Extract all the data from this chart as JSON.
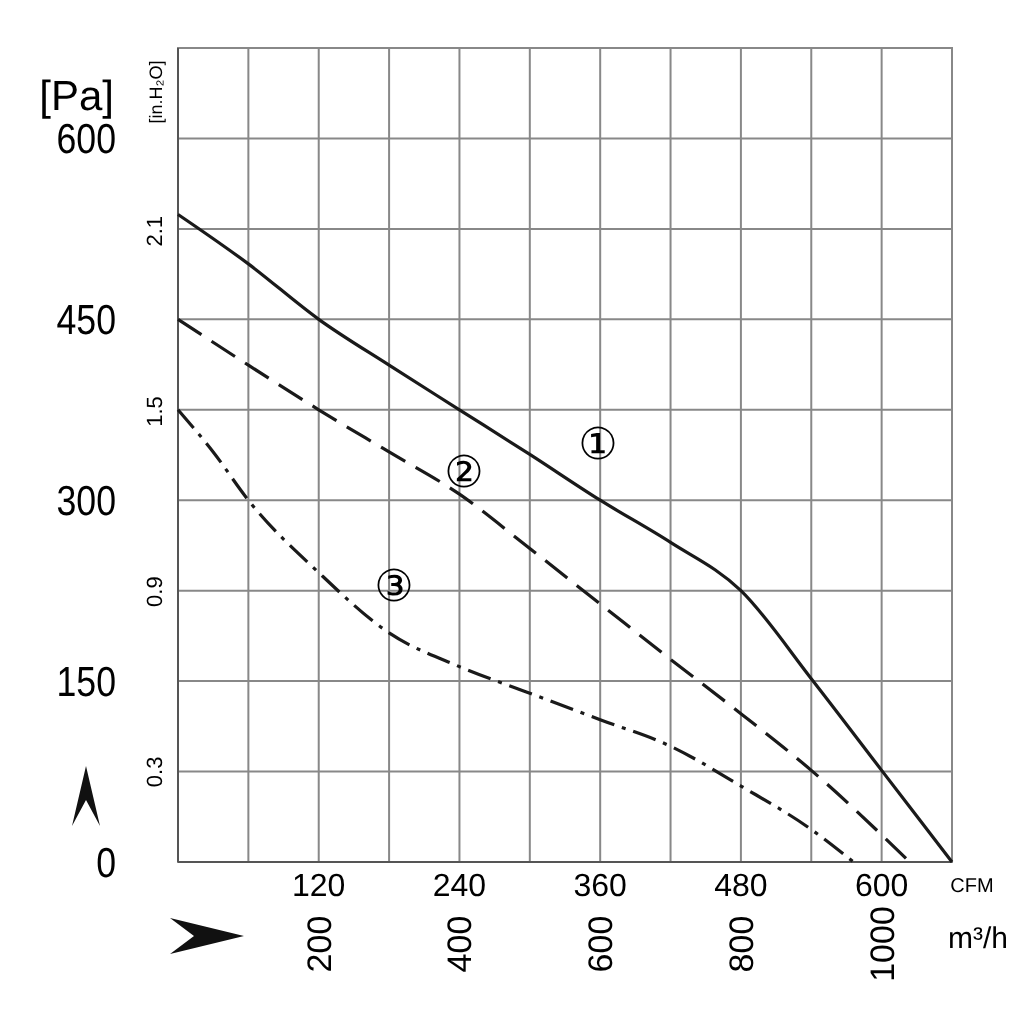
{
  "chart_data": {
    "type": "line",
    "ylabel": "[Pa]",
    "y2label": "[in.H₂O]",
    "xlabel": "m³/h",
    "x2label": "CFM",
    "xlim": [
      0,
      1100
    ],
    "xticks": [
      {
        "value": 0,
        "label": null
      },
      {
        "value": 100,
        "label": null
      },
      200,
      {
        "value": 300,
        "label": null
      },
      400,
      {
        "value": 500,
        "label": null
      },
      600,
      {
        "value": 700,
        "label": null
      },
      800,
      {
        "value": 900,
        "label": null
      },
      1000,
      {
        "value": 1100,
        "label": null
      }
    ],
    "x2lim": [
      0,
      660
    ],
    "x2ticks": [
      120,
      240,
      360,
      480,
      600
    ],
    "ylim": [
      0,
      675
    ],
    "yticks": [
      0,
      {
        "value": 75,
        "label": null
      },
      150,
      {
        "value": 225,
        "label": null
      },
      300,
      {
        "value": 375,
        "label": null
      },
      450,
      {
        "value": 525,
        "label": null
      },
      600,
      {
        "value": 675,
        "label": null
      }
    ],
    "y2lim": [
      0,
      2.71
    ],
    "y2ticks": [
      0.3,
      0.9,
      1.5,
      2.1
    ],
    "grid": true,
    "marker": "none",
    "series": [
      {
        "color": "#1a1a1a",
        "line_style": "solid",
        "x": [
          0,
          100,
          200,
          300,
          400,
          500,
          600,
          700,
          800,
          900,
          1000,
          1100
        ],
        "values": [
          537,
          496,
          450,
          412,
          375,
          338,
          300,
          265,
          225,
          152,
          76,
          0
        ]
      },
      {
        "color": "#1a1a1a",
        "line_style": "dashed",
        "x": [
          0,
          100,
          200,
          300,
          400,
          500,
          600,
          700,
          800,
          900,
          1040
        ],
        "values": [
          450,
          412,
          375,
          340,
          305,
          260,
          214,
          168,
          123,
          76,
          0
        ]
      },
      {
        "color": "#1a1a1a",
        "line_style": "dotted",
        "x": [
          0,
          50,
          100,
          200,
          300,
          400,
          500,
          600,
          700,
          800,
          900,
          960
        ],
        "values": [
          375,
          340,
          300,
          240,
          190,
          162,
          140,
          118,
          96,
          63,
          27,
          0
        ]
      }
    ],
    "annotations": [
      "①",
      "②",
      "③"
    ]
  }
}
